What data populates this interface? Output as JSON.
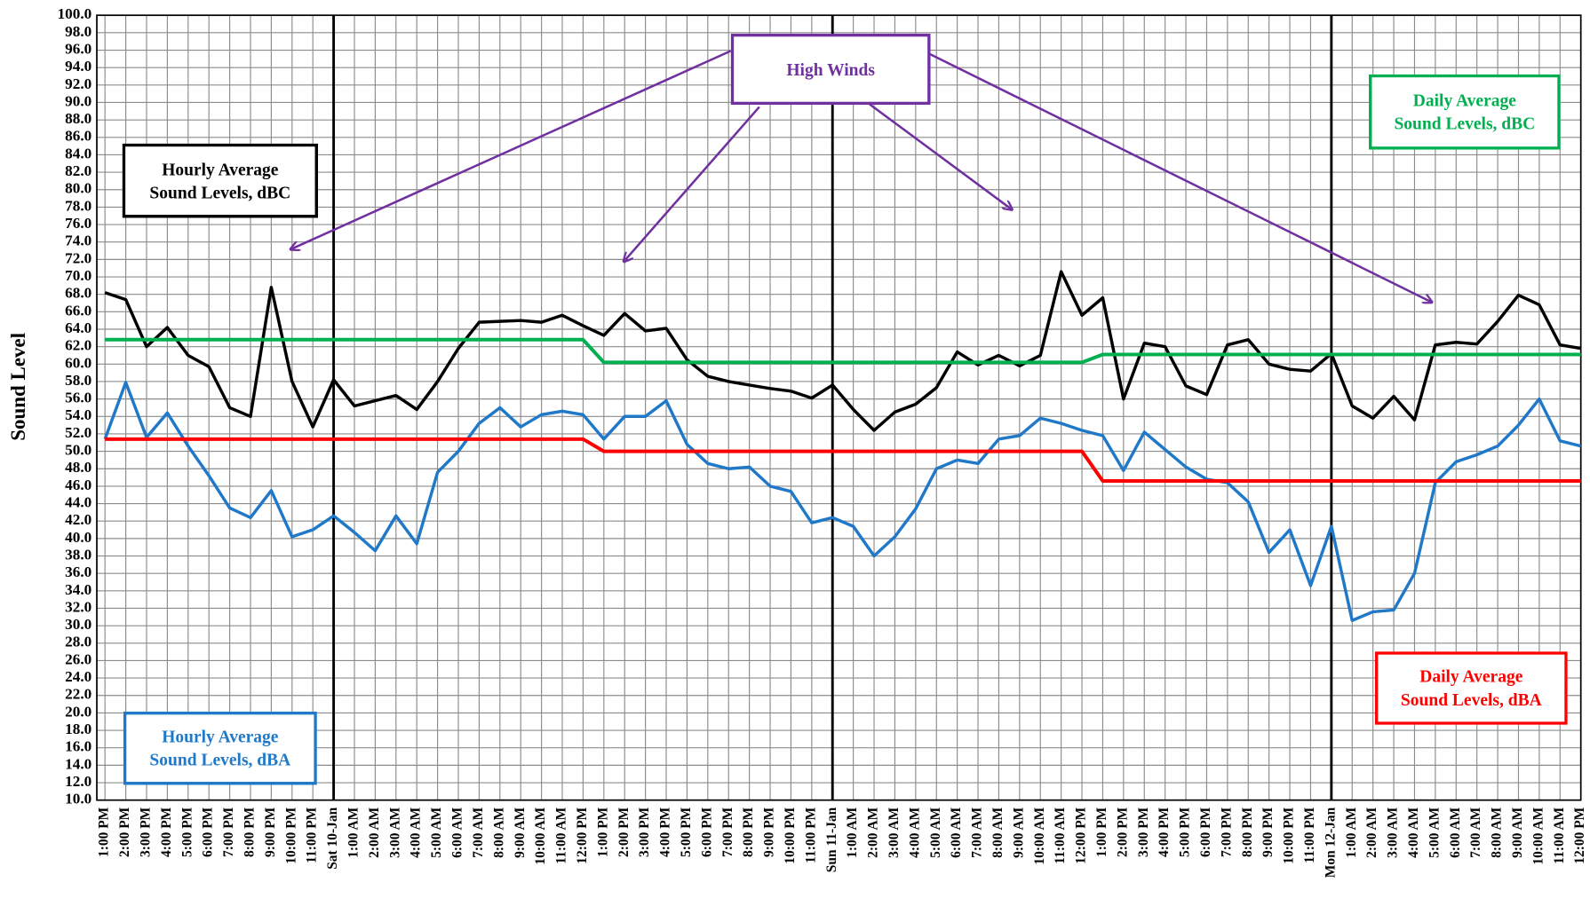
{
  "chart_data": {
    "type": "line",
    "y_label": "Sound Level",
    "annotation": "High Winds",
    "annotation_color": "#7030a0",
    "grid": true,
    "categories": [
      "1:00 PM",
      "2:00 PM",
      "3:00 PM",
      "4:00 PM",
      "5:00 PM",
      "6:00 PM",
      "7:00 PM",
      "8:00 PM",
      "9:00 PM",
      "10:00 PM",
      "11:00 PM",
      "Sat 10-Jan",
      "1:00 AM",
      "2:00 AM",
      "3:00 AM",
      "4:00 AM",
      "5:00 AM",
      "6:00 AM",
      "7:00 AM",
      "8:00 AM",
      "9:00 AM",
      "10:00 AM",
      "11:00 AM",
      "12:00 PM",
      "1:00 PM",
      "2:00 PM",
      "3:00 PM",
      "4:00 PM",
      "5:00 PM",
      "6:00 PM",
      "7:00 PM",
      "8:00 PM",
      "9:00 PM",
      "10:00 PM",
      "11:00 PM",
      "Sun 11-Jan",
      "1:00 AM",
      "2:00 AM",
      "3:00 AM",
      "4:00 AM",
      "5:00 AM",
      "6:00 AM",
      "7:00 AM",
      "8:00 AM",
      "9:00 AM",
      "10:00 AM",
      "11:00 AM",
      "12:00 PM",
      "1:00 PM",
      "2:00 PM",
      "3:00 PM",
      "4:00 PM",
      "5:00 PM",
      "6:00 PM",
      "7:00 PM",
      "8:00 PM",
      "9:00 PM",
      "10:00 PM",
      "11:00 PM",
      "Mon 12-Jan",
      "1:00 AM",
      "2:00 AM",
      "3:00 AM",
      "4:00 AM",
      "5:00 AM",
      "6:00 AM",
      "7:00 AM",
      "8:00 AM",
      "9:00 AM",
      "10:00 AM",
      "11:00 AM",
      "12:00 PM"
    ],
    "series": [
      {
        "name": "Hourly Average\nSound Levels, dBC",
        "color": "#000000",
        "values": [
          68.2,
          67.4,
          62.0,
          64.2,
          61.0,
          59.7,
          55.0,
          54.0,
          68.8,
          58.0,
          52.8,
          58.2,
          55.2,
          55.8,
          56.4,
          54.8,
          58.0,
          61.8,
          64.8,
          64.9,
          65.0,
          64.8,
          65.6,
          64.4,
          63.3,
          65.8,
          63.8,
          64.1,
          60.5,
          58.6,
          58.0,
          57.6,
          57.2,
          56.9,
          56.1,
          57.6,
          54.8,
          52.4,
          54.5,
          55.4,
          57.3,
          61.4,
          59.9,
          61.0,
          59.8,
          61.0,
          70.6,
          65.6,
          67.6,
          56.0,
          62.4,
          62.0,
          57.5,
          56.5,
          62.2,
          62.8,
          60.0,
          59.4,
          59.2,
          61.2,
          55.2,
          53.8,
          56.3,
          53.6,
          62.2,
          62.5,
          62.3,
          64.9,
          67.9,
          66.8,
          62.2,
          61.8
        ]
      },
      {
        "name": "Hourly Average\nSound Levels, dBA",
        "color": "#1f78c8",
        "values": [
          51.4,
          57.9,
          51.6,
          54.4,
          50.6,
          47.2,
          43.5,
          42.4,
          45.5,
          40.2,
          41.0,
          42.6,
          40.7,
          38.6,
          42.6,
          39.4,
          47.6,
          50.0,
          53.2,
          55.0,
          52.8,
          54.2,
          54.6,
          54.2,
          51.4,
          54.0,
          54.0,
          55.8,
          50.8,
          48.6,
          48.0,
          48.2,
          46.0,
          45.4,
          41.8,
          42.4,
          41.4,
          38.0,
          40.2,
          43.4,
          48.0,
          49.0,
          48.6,
          51.4,
          51.8,
          53.8,
          53.2,
          52.4,
          51.8,
          47.8,
          52.2,
          50.2,
          48.2,
          46.8,
          46.4,
          44.2,
          38.4,
          41.0,
          34.6,
          41.4,
          30.6,
          31.6,
          31.8,
          36.0,
          46.4,
          48.8,
          49.6,
          50.6,
          53.0,
          56.0,
          51.2,
          50.6
        ]
      },
      {
        "name": "Daily Average\nSound Levels, dBC",
        "color": "#00b050",
        "values": [
          62.8,
          62.8,
          62.8,
          62.8,
          62.8,
          62.8,
          62.8,
          62.8,
          62.8,
          62.8,
          62.8,
          62.8,
          62.8,
          62.8,
          62.8,
          62.8,
          62.8,
          62.8,
          62.8,
          62.8,
          62.8,
          62.8,
          62.8,
          62.8,
          60.2,
          60.2,
          60.2,
          60.2,
          60.2,
          60.2,
          60.2,
          60.2,
          60.2,
          60.2,
          60.2,
          60.2,
          60.2,
          60.2,
          60.2,
          60.2,
          60.2,
          60.2,
          60.2,
          60.2,
          60.2,
          60.2,
          60.2,
          60.2,
          61.1,
          61.1,
          61.1,
          61.1,
          61.1,
          61.1,
          61.1,
          61.1,
          61.1,
          61.1,
          61.1,
          61.1,
          61.1,
          61.1,
          61.1,
          61.1,
          61.1,
          61.1,
          61.1,
          61.1,
          61.1,
          61.1,
          61.1,
          61.1
        ]
      },
      {
        "name": "Daily Average\nSound Levels, dBA",
        "color": "#ff0000",
        "values": [
          51.4,
          51.4,
          51.4,
          51.4,
          51.4,
          51.4,
          51.4,
          51.4,
          51.4,
          51.4,
          51.4,
          51.4,
          51.4,
          51.4,
          51.4,
          51.4,
          51.4,
          51.4,
          51.4,
          51.4,
          51.4,
          51.4,
          51.4,
          51.4,
          50.0,
          50.0,
          50.0,
          50.0,
          50.0,
          50.0,
          50.0,
          50.0,
          50.0,
          50.0,
          50.0,
          50.0,
          50.0,
          50.0,
          50.0,
          50.0,
          50.0,
          50.0,
          50.0,
          50.0,
          50.0,
          50.0,
          50.0,
          50.0,
          46.6,
          46.6,
          46.6,
          46.6,
          46.6,
          46.6,
          46.6,
          46.6,
          46.6,
          46.6,
          46.6,
          46.6,
          46.6,
          46.6,
          46.6,
          46.6,
          46.6,
          46.6,
          46.6,
          46.6,
          46.6,
          46.6,
          46.6,
          46.6
        ]
      }
    ],
    "ylim": [
      10,
      100
    ],
    "yticks": [
      {
        "value": 10,
        "label": "10.0"
      },
      {
        "value": 12,
        "label": "12.0"
      },
      {
        "value": 14,
        "label": "14.0"
      },
      {
        "value": 16,
        "label": "16.0"
      },
      {
        "value": 18,
        "label": "18.0"
      },
      {
        "value": 20,
        "label": "20.0"
      },
      {
        "value": 22,
        "label": "22.0"
      },
      {
        "value": 24,
        "label": "24.0"
      },
      {
        "value": 26,
        "label": "26.0"
      },
      {
        "value": 28,
        "label": "28.0"
      },
      {
        "value": 30,
        "label": "30.0"
      },
      {
        "value": 32,
        "label": "32.0"
      },
      {
        "value": 34,
        "label": "34.0"
      },
      {
        "value": 36,
        "label": "36.0"
      },
      {
        "value": 38,
        "label": "38.0"
      },
      {
        "value": 40,
        "label": "40.0"
      },
      {
        "value": 42,
        "label": "42.0"
      },
      {
        "value": 44,
        "label": "44.0"
      },
      {
        "value": 46,
        "label": "46.0"
      },
      {
        "value": 48,
        "label": "48.0"
      },
      {
        "value": 50,
        "label": "50.0"
      },
      {
        "value": 52,
        "label": "52.0"
      },
      {
        "value": 54,
        "label": "54.0"
      },
      {
        "value": 56,
        "label": "56.0"
      },
      {
        "value": 58,
        "label": "58.0"
      },
      {
        "value": 60,
        "label": "60.0"
      },
      {
        "value": 62,
        "label": "62.0"
      },
      {
        "value": 64,
        "label": "64.0"
      },
      {
        "value": 66,
        "label": "66.0"
      },
      {
        "value": 68,
        "label": "68.0"
      },
      {
        "value": 70,
        "label": "70.0"
      },
      {
        "value": 72,
        "label": "72.0"
      },
      {
        "value": 74,
        "label": "74.0"
      },
      {
        "value": 76,
        "label": "76.0"
      },
      {
        "value": 78,
        "label": "78.0"
      },
      {
        "value": 80,
        "label": "80.0"
      },
      {
        "value": 82,
        "label": "82.0"
      },
      {
        "value": 84,
        "label": "84.0"
      },
      {
        "value": 86,
        "label": "86.0"
      },
      {
        "value": 88,
        "label": "88.0"
      },
      {
        "value": 90,
        "label": "90.0"
      },
      {
        "value": 92,
        "label": "92.0"
      },
      {
        "value": 94,
        "label": "94.0"
      },
      {
        "value": 96,
        "label": "96.0"
      },
      {
        "value": 98,
        "label": "98.0"
      },
      {
        "value": 100,
        "label": "100.0"
      }
    ]
  }
}
